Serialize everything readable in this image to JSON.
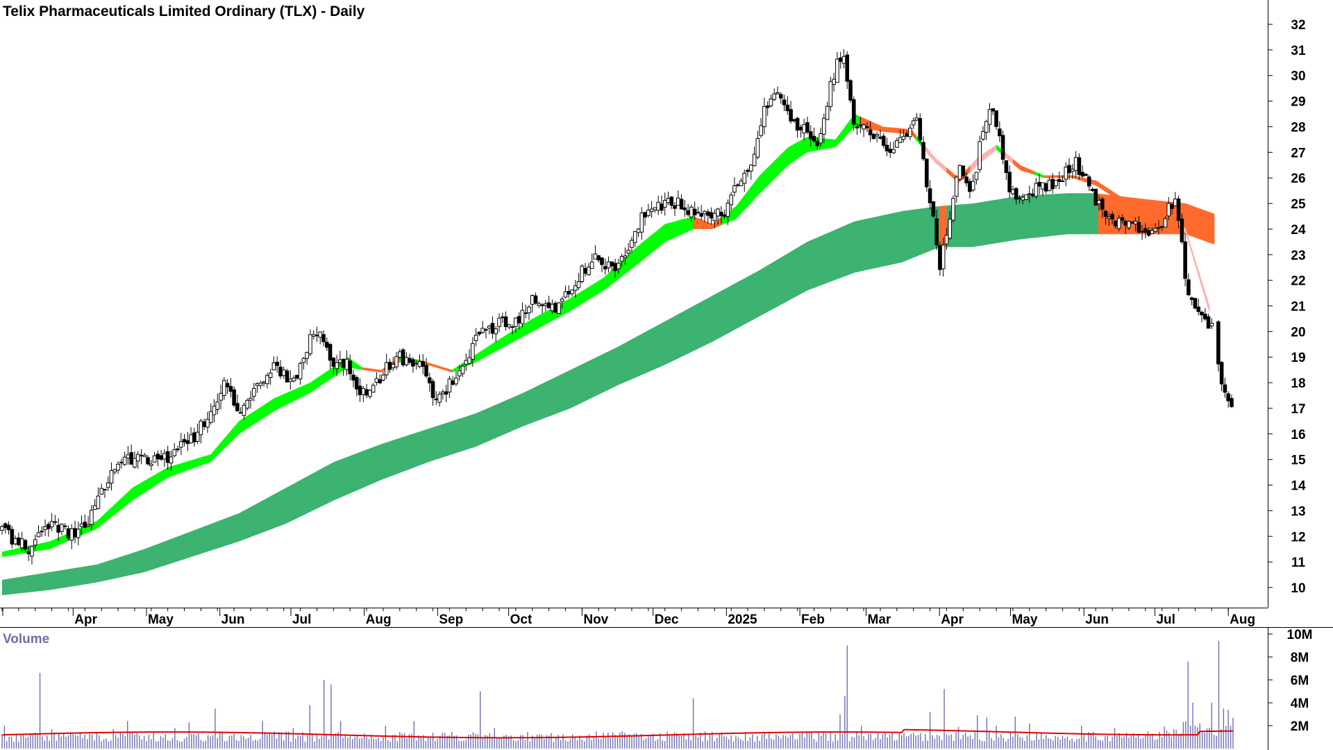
{
  "chart_data": [
    {
      "type": "candlestick",
      "title": "Telix Pharmaceuticals Limited Ordinary (TLX) - Daily",
      "ylim": [
        9,
        33
      ],
      "y_ticks": [
        10,
        11,
        12,
        13,
        14,
        15,
        16,
        17,
        18,
        19,
        20,
        21,
        22,
        23,
        24,
        25,
        26,
        27,
        28,
        29,
        30,
        31,
        32
      ],
      "x_ticks": [
        {
          "label": "Apr",
          "day": 30
        },
        {
          "label": "May",
          "day": 61
        },
        {
          "label": "Jun",
          "day": 92
        },
        {
          "label": "Jul",
          "day": 122
        },
        {
          "label": "Aug",
          "day": 153
        },
        {
          "label": "Sep",
          "day": 184
        },
        {
          "label": "Oct",
          "day": 214
        },
        {
          "label": "Nov",
          "day": 245
        },
        {
          "label": "Dec",
          "day": 275
        },
        {
          "label": "2025",
          "day": 306
        },
        {
          "label": "Feb",
          "day": 337
        },
        {
          "label": "Mar",
          "day": 365
        },
        {
          "label": "Apr",
          "day": 396
        },
        {
          "label": "May",
          "day": 426
        },
        {
          "label": "Jun",
          "day": 457
        },
        {
          "label": "Jul",
          "day": 487
        },
        {
          "label": "Aug",
          "day": 518
        }
      ],
      "price_path": [
        [
          0,
          12.2
        ],
        [
          12,
          11.4
        ],
        [
          20,
          12.6
        ],
        [
          30,
          12.1
        ],
        [
          38,
          12.8
        ],
        [
          46,
          14.5
        ],
        [
          55,
          15.1
        ],
        [
          70,
          15.0
        ],
        [
          80,
          15.8
        ],
        [
          88,
          16.7
        ],
        [
          94,
          18.2
        ],
        [
          100,
          16.8
        ],
        [
          106,
          17.8
        ],
        [
          115,
          18.7
        ],
        [
          124,
          18.0
        ],
        [
          130,
          19.6
        ],
        [
          136,
          19.8
        ],
        [
          140,
          18.8
        ],
        [
          146,
          18.7
        ],
        [
          152,
          17.6
        ],
        [
          160,
          18.3
        ],
        [
          168,
          19.0
        ],
        [
          176,
          18.7
        ],
        [
          183,
          17.4
        ],
        [
          190,
          18.0
        ],
        [
          196,
          18.8
        ],
        [
          202,
          20.0
        ],
        [
          210,
          20.3
        ],
        [
          218,
          20.5
        ],
        [
          224,
          21.3
        ],
        [
          234,
          20.9
        ],
        [
          240,
          21.6
        ],
        [
          250,
          23.0
        ],
        [
          260,
          22.4
        ],
        [
          268,
          24.0
        ],
        [
          274,
          25.0
        ],
        [
          284,
          25.0
        ],
        [
          292,
          24.7
        ],
        [
          300,
          24.6
        ],
        [
          306,
          24.7
        ],
        [
          312,
          26.0
        ],
        [
          318,
          27.0
        ],
        [
          322,
          28.8
        ],
        [
          328,
          29.2
        ],
        [
          336,
          28.0
        ],
        [
          345,
          27.5
        ],
        [
          351,
          30.0
        ],
        [
          355,
          31.0
        ],
        [
          360,
          28.2
        ],
        [
          368,
          27.6
        ],
        [
          374,
          27.0
        ],
        [
          382,
          27.8
        ],
        [
          386,
          28.5
        ],
        [
          390,
          26.0
        ],
        [
          394,
          24.0
        ],
        [
          396,
          22.5
        ],
        [
          400,
          24.2
        ],
        [
          404,
          26.5
        ],
        [
          410,
          25.5
        ],
        [
          414,
          27.8
        ],
        [
          418,
          28.8
        ],
        [
          422,
          27.3
        ],
        [
          426,
          25.5
        ],
        [
          432,
          25.3
        ],
        [
          440,
          25.7
        ],
        [
          448,
          26.0
        ],
        [
          453,
          26.7
        ],
        [
          458,
          25.8
        ],
        [
          462,
          25.2
        ],
        [
          468,
          24.2
        ],
        [
          476,
          24.1
        ],
        [
          484,
          24.0
        ],
        [
          490,
          24.3
        ],
        [
          496,
          25.3
        ],
        [
          500,
          22.0
        ],
        [
          506,
          20.5
        ],
        [
          511,
          20.2
        ],
        [
          514,
          18.5
        ],
        [
          516,
          17.6
        ],
        [
          518,
          17.1
        ]
      ],
      "ema_short": {
        "fast": [
          [
            0,
            11.4
          ],
          [
            20,
            11.8
          ],
          [
            40,
            12.6
          ],
          [
            55,
            13.9
          ],
          [
            70,
            14.7
          ],
          [
            88,
            15.2
          ],
          [
            100,
            16.5
          ],
          [
            115,
            17.4
          ],
          [
            130,
            18.0
          ],
          [
            146,
            19.0
          ],
          [
            152,
            18.6
          ],
          [
            160,
            18.5
          ],
          [
            168,
            19.0
          ],
          [
            176,
            18.9
          ],
          [
            190,
            18.5
          ],
          [
            200,
            19.1
          ],
          [
            210,
            19.7
          ],
          [
            224,
            20.5
          ],
          [
            240,
            21.3
          ],
          [
            254,
            22.1
          ],
          [
            268,
            23.3
          ],
          [
            280,
            24.2
          ],
          [
            292,
            24.5
          ],
          [
            300,
            24.2
          ],
          [
            310,
            24.9
          ],
          [
            320,
            26.1
          ],
          [
            332,
            27.2
          ],
          [
            340,
            27.6
          ],
          [
            352,
            27.5
          ],
          [
            360,
            28.5
          ],
          [
            372,
            28.0
          ],
          [
            384,
            27.9
          ],
          [
            394,
            26.8
          ],
          [
            404,
            26.0
          ],
          [
            412,
            26.8
          ],
          [
            420,
            27.3
          ],
          [
            430,
            26.5
          ],
          [
            440,
            26.1
          ],
          [
            452,
            26.1
          ],
          [
            462,
            25.9
          ],
          [
            472,
            25.3
          ],
          [
            484,
            24.9
          ],
          [
            494,
            24.7
          ],
          [
            500,
            24.0
          ],
          [
            510,
            21.0
          ]
        ],
        "slow": [
          [
            0,
            11.2
          ],
          [
            20,
            11.5
          ],
          [
            40,
            12.3
          ],
          [
            55,
            13.4
          ],
          [
            70,
            14.3
          ],
          [
            88,
            14.9
          ],
          [
            100,
            16.0
          ],
          [
            115,
            16.9
          ],
          [
            130,
            17.6
          ],
          [
            146,
            18.6
          ],
          [
            152,
            18.5
          ],
          [
            160,
            18.4
          ],
          [
            168,
            18.8
          ],
          [
            176,
            18.8
          ],
          [
            190,
            18.4
          ],
          [
            200,
            18.8
          ],
          [
            210,
            19.3
          ],
          [
            224,
            20.0
          ],
          [
            240,
            20.8
          ],
          [
            254,
            21.6
          ],
          [
            268,
            22.6
          ],
          [
            280,
            23.5
          ],
          [
            292,
            24.0
          ],
          [
            300,
            24.0
          ],
          [
            310,
            24.4
          ],
          [
            320,
            25.4
          ],
          [
            332,
            26.5
          ],
          [
            340,
            27.0
          ],
          [
            352,
            27.2
          ],
          [
            360,
            28.0
          ],
          [
            372,
            27.8
          ],
          [
            384,
            27.7
          ],
          [
            394,
            26.6
          ],
          [
            404,
            25.8
          ],
          [
            412,
            26.5
          ],
          [
            420,
            27.1
          ],
          [
            430,
            26.3
          ],
          [
            440,
            26.0
          ],
          [
            452,
            26.0
          ],
          [
            462,
            25.7
          ],
          [
            472,
            25.1
          ],
          [
            484,
            24.7
          ],
          [
            494,
            24.5
          ],
          [
            500,
            23.8
          ],
          [
            510,
            20.7
          ]
        ],
        "bearish_ranges": [
          [
            152,
            168
          ],
          [
            176,
            190
          ],
          [
            292,
            304
          ],
          [
            362,
            386
          ],
          [
            390,
            420
          ],
          [
            422,
            436
          ],
          [
            440,
            512
          ]
        ]
      },
      "ema_long": {
        "fast": [
          [
            0,
            10.3
          ],
          [
            20,
            10.6
          ],
          [
            40,
            10.9
          ],
          [
            60,
            11.5
          ],
          [
            80,
            12.2
          ],
          [
            100,
            12.9
          ],
          [
            120,
            13.9
          ],
          [
            140,
            14.9
          ],
          [
            160,
            15.6
          ],
          [
            180,
            16.2
          ],
          [
            200,
            16.8
          ],
          [
            220,
            17.6
          ],
          [
            240,
            18.5
          ],
          [
            260,
            19.4
          ],
          [
            280,
            20.4
          ],
          [
            300,
            21.4
          ],
          [
            320,
            22.4
          ],
          [
            340,
            23.5
          ],
          [
            360,
            24.3
          ],
          [
            380,
            24.7
          ],
          [
            396,
            24.9
          ],
          [
            410,
            25.0
          ],
          [
            430,
            25.3
          ],
          [
            450,
            25.4
          ],
          [
            462,
            25.4
          ],
          [
            480,
            25.2
          ],
          [
            500,
            25.0
          ],
          [
            512,
            24.6
          ]
        ],
        "slow": [
          [
            0,
            9.7
          ],
          [
            20,
            9.9
          ],
          [
            40,
            10.2
          ],
          [
            60,
            10.6
          ],
          [
            80,
            11.2
          ],
          [
            100,
            11.8
          ],
          [
            120,
            12.5
          ],
          [
            140,
            13.4
          ],
          [
            160,
            14.2
          ],
          [
            180,
            14.9
          ],
          [
            200,
            15.5
          ],
          [
            220,
            16.3
          ],
          [
            240,
            17.0
          ],
          [
            260,
            17.9
          ],
          [
            280,
            18.7
          ],
          [
            300,
            19.6
          ],
          [
            320,
            20.6
          ],
          [
            340,
            21.6
          ],
          [
            360,
            22.3
          ],
          [
            380,
            22.7
          ],
          [
            396,
            23.3
          ],
          [
            410,
            23.3
          ],
          [
            430,
            23.6
          ],
          [
            450,
            23.8
          ],
          [
            462,
            23.8
          ],
          [
            480,
            23.8
          ],
          [
            500,
            23.8
          ],
          [
            512,
            23.4
          ]
        ],
        "bearish_ranges": [
          [
            396,
            399
          ],
          [
            463,
            512
          ]
        ]
      },
      "colors": {
        "up_band": "#00ff00",
        "down_band": "#ff6b2d",
        "weak_down_band": "#ffb0b0",
        "long_band": "#3cb371",
        "candle": "#000000"
      }
    },
    {
      "type": "bar",
      "label": "Volume",
      "y_ticks": [
        "2M",
        "4M",
        "6M",
        "8M",
        "10M"
      ],
      "ylim": [
        0,
        10
      ],
      "units": "millions",
      "bar_color": "#6e6eb0",
      "average_color": "#e00000",
      "average_level": 1.2,
      "spikes": [
        [
          1,
          2.0
        ],
        [
          16,
          6.6
        ],
        [
          21,
          1.7
        ],
        [
          47,
          1.7
        ],
        [
          53,
          2.4
        ],
        [
          73,
          1.8
        ],
        [
          79,
          2.3
        ],
        [
          90,
          3.5
        ],
        [
          110,
          2.4
        ],
        [
          123,
          1.8
        ],
        [
          130,
          3.8
        ],
        [
          136,
          6.0
        ],
        [
          139,
          5.6
        ],
        [
          143,
          2.4
        ],
        [
          162,
          2.0
        ],
        [
          174,
          2.4
        ],
        [
          202,
          5.0
        ],
        [
          208,
          1.8
        ],
        [
          262,
          1.5
        ],
        [
          292,
          4.4
        ],
        [
          354,
          3.0
        ],
        [
          356,
          4.6
        ],
        [
          357,
          9.0
        ],
        [
          363,
          2.0
        ],
        [
          392,
          3.2
        ],
        [
          398,
          5.2
        ],
        [
          404,
          1.9
        ],
        [
          412,
          2.9
        ],
        [
          416,
          2.7
        ],
        [
          420,
          2.0
        ],
        [
          428,
          2.8
        ],
        [
          434,
          2.2
        ],
        [
          456,
          2.0
        ],
        [
          470,
          1.8
        ],
        [
          484,
          1.5
        ],
        [
          501,
          7.6
        ],
        [
          503,
          4.0
        ],
        [
          506,
          2.2
        ],
        [
          511,
          4.0
        ],
        [
          514,
          9.4
        ],
        [
          516,
          3.5
        ],
        [
          518,
          3.4
        ],
        [
          520,
          2.7
        ]
      ]
    }
  ]
}
